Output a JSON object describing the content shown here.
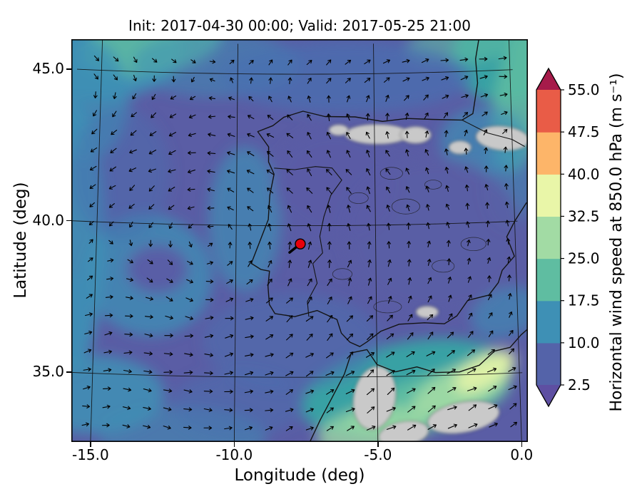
{
  "chart_data": {
    "type": "heatmap",
    "title": "Init: 2017-04-30 00:00; Valid: 2017-05-25 21:00",
    "xlabel": "Longitude (deg)",
    "ylabel": "Latitude (deg)",
    "xlim": [
      -15.9,
      0.45
    ],
    "ylim": [
      32.7,
      45.99
    ],
    "xticks": [
      -15.0,
      -10.0,
      -5.0,
      0.0
    ],
    "xtick_labels": [
      "-15.0",
      "-10.0",
      "-5.0",
      "0.0"
    ],
    "yticks": [
      35.0,
      40.0,
      45.0
    ],
    "ytick_labels": [
      "35.0",
      "40.0",
      "45.0"
    ],
    "grid": true,
    "colorbar": {
      "label": "Horizontal wind speed at 850.0 hPa (m s⁻¹)",
      "ticks": [
        2.5,
        10.0,
        17.5,
        25.0,
        32.5,
        40.0,
        47.5,
        55.0
      ],
      "tick_labels_top_to_bottom": [
        "55.0",
        "47.5",
        "40.0",
        "32.5",
        "25.0",
        "17.5",
        "10.0",
        "2.5"
      ],
      "band_colors_low_to_high": [
        "#5463a9",
        "#3e90b5",
        "#5fbda1",
        "#a2dba4",
        "#e9f6a8",
        "#fdb569",
        "#e95c47"
      ],
      "under_color": "#5e4fa2",
      "over_color": "#a61b4a"
    },
    "marker": {
      "lon": -7.7,
      "lat": 39.4,
      "face": "#e8000b",
      "edge": "#000000"
    },
    "base_color": "#5a5da5",
    "terrain_mask_color": "#c9c9c9",
    "quiver": {
      "color": "#000000",
      "cols": 22,
      "rows": 21
    },
    "field_blobs": [
      [
        -15.3,
        45.6,
        3.2,
        1.6,
        0,
        "#3e90b5",
        0.95
      ],
      [
        -13.2,
        45.9,
        2.6,
        1.0,
        -10,
        "#5fbda1",
        0.8
      ],
      [
        -15.6,
        44.0,
        1.6,
        2.0,
        0,
        "#3e90b5",
        0.8
      ],
      [
        -10.8,
        45.3,
        3.0,
        1.1,
        0,
        "#3e90b5",
        0.5
      ],
      [
        -15.9,
        39.5,
        1.2,
        4.5,
        0,
        "#3e90b5",
        0.85
      ],
      [
        -13.1,
        38.3,
        2.3,
        2.0,
        20,
        "#3e90b5",
        0.75
      ],
      [
        -12.8,
        38.5,
        1.1,
        0.8,
        0,
        "#5a5da5",
        0.95
      ],
      [
        -9.7,
        40.2,
        1.3,
        2.4,
        0,
        "#3e90b5",
        0.65
      ],
      [
        -15.0,
        34.3,
        2.6,
        1.3,
        0,
        "#3e90b5",
        0.85
      ],
      [
        -11.8,
        33.0,
        3.0,
        1.0,
        0,
        "#3e90b5",
        0.55
      ],
      [
        -4.0,
        34.6,
        3.8,
        1.5,
        -12,
        "#35a8a4",
        0.9
      ],
      [
        -3.2,
        34.1,
        3.0,
        0.9,
        -15,
        "#5fbda1",
        0.95
      ],
      [
        -2.0,
        34.6,
        2.0,
        0.7,
        -25,
        "#a2dba4",
        0.9
      ],
      [
        -1.2,
        35.1,
        1.2,
        0.5,
        -30,
        "#e9f6a8",
        0.85
      ],
      [
        -5.2,
        33.2,
        2.0,
        0.8,
        -10,
        "#a2dba4",
        0.75
      ],
      [
        -0.1,
        45.4,
        2.0,
        1.5,
        0,
        "#35a8a4",
        0.9
      ],
      [
        0.4,
        44.0,
        1.0,
        2.4,
        10,
        "#5fbda1",
        0.85
      ],
      [
        -1.6,
        45.95,
        2.2,
        0.7,
        -8,
        "#5fbda1",
        0.6
      ],
      [
        -1.0,
        42.7,
        1.6,
        1.1,
        0,
        "#3e90b5",
        0.65
      ],
      [
        -0.2,
        41.2,
        0.9,
        1.5,
        0,
        "#3e90b5",
        0.5
      ],
      [
        -6.0,
        44.9,
        4.5,
        1.2,
        0,
        "#4a6fb0",
        0.75
      ],
      [
        -8.0,
        36.2,
        3.2,
        1.6,
        0,
        "#4a6fb0",
        0.5
      ],
      [
        -2.9,
        39.6,
        3.2,
        2.6,
        0,
        "#5a5da5",
        0.85
      ],
      [
        -6.5,
        41.4,
        2.2,
        1.8,
        0,
        "#5a5da5",
        0.7
      ],
      [
        -0.4,
        37.0,
        1.3,
        0.8,
        -20,
        "#3e90b5",
        0.6
      ],
      [
        -16.0,
        36.8,
        0.9,
        1.5,
        0,
        "#3e90b5",
        0.5
      ],
      [
        -14.2,
        41.6,
        1.8,
        2.2,
        0,
        "#4a6fb0",
        0.45
      ],
      [
        -9.9,
        34.1,
        2.4,
        1.1,
        0,
        "#4a6fb0",
        0.5
      ]
    ],
    "terrain_patches": [
      [
        -4.9,
        43.0,
        1.15,
        0.33,
        0
      ],
      [
        -3.5,
        42.95,
        0.55,
        0.28,
        0
      ],
      [
        -6.3,
        43.15,
        0.35,
        0.18,
        0
      ],
      [
        -0.35,
        42.75,
        0.95,
        0.4,
        5
      ],
      [
        -1.9,
        42.5,
        0.4,
        0.22,
        0
      ],
      [
        -5.1,
        34.3,
        0.75,
        1.05,
        10
      ],
      [
        -3.2,
        37.1,
        0.4,
        0.2,
        0
      ],
      [
        -2.0,
        33.6,
        1.3,
        0.5,
        -10
      ],
      [
        -4.1,
        33.1,
        0.9,
        0.4,
        -10
      ]
    ],
    "contour_squiggles": [
      [
        -3.9,
        40.6,
        0.5,
        0.25
      ],
      [
        -2.6,
        38.6,
        0.4,
        0.2
      ],
      [
        -5.6,
        40.9,
        0.35,
        0.18
      ],
      [
        -1.5,
        39.3,
        0.45,
        0.22
      ],
      [
        -4.4,
        41.7,
        0.4,
        0.2
      ],
      [
        -2.9,
        41.3,
        0.3,
        0.15
      ],
      [
        -6.2,
        38.4,
        0.35,
        0.18
      ],
      [
        -4.6,
        37.3,
        0.5,
        0.2
      ]
    ],
    "coastlines": [
      [
        [
          -1.1,
          46.1
        ],
        [
          -1.25,
          45.4
        ],
        [
          -1.2,
          44.6
        ],
        [
          -1.4,
          43.6
        ],
        [
          -1.8,
          43.4
        ],
        [
          -2.9,
          43.45
        ],
        [
          -3.8,
          43.5
        ],
        [
          -4.7,
          43.42
        ],
        [
          -5.7,
          43.58
        ],
        [
          -6.8,
          43.6
        ],
        [
          -7.6,
          43.78
        ],
        [
          -8.3,
          43.58
        ],
        [
          -8.7,
          43.3
        ],
        [
          -9.25,
          43.1
        ],
        [
          -8.85,
          42.6
        ],
        [
          -8.85,
          42.1
        ],
        [
          -8.65,
          41.7
        ],
        [
          -8.8,
          41.0
        ],
        [
          -8.85,
          40.2
        ],
        [
          -9.45,
          38.75
        ],
        [
          -9.1,
          38.55
        ],
        [
          -8.8,
          38.5
        ],
        [
          -8.85,
          38.0
        ],
        [
          -8.8,
          37.4
        ],
        [
          -8.6,
          37.1
        ],
        [
          -7.9,
          37.0
        ],
        [
          -7.1,
          37.2
        ],
        [
          -6.4,
          36.9
        ],
        [
          -6.25,
          36.45
        ],
        [
          -5.95,
          36.15
        ],
        [
          -5.6,
          36.0
        ],
        [
          -5.35,
          36.15
        ],
        [
          -4.85,
          36.5
        ],
        [
          -4.2,
          36.72
        ],
        [
          -3.3,
          36.75
        ],
        [
          -2.6,
          36.7
        ],
        [
          -2.15,
          36.95
        ],
        [
          -1.75,
          37.45
        ],
        [
          -1.0,
          37.6
        ],
        [
          -0.65,
          38.0
        ],
        [
          -0.5,
          38.4
        ],
        [
          -0.05,
          38.85
        ],
        [
          -0.3,
          39.5
        ],
        [
          0.0,
          40.0
        ],
        [
          0.45,
          40.6
        ]
      ],
      [
        [
          -7.4,
          32.8
        ],
        [
          -7.0,
          33.6
        ],
        [
          -6.6,
          34.3
        ],
        [
          -6.15,
          35.1
        ],
        [
          -5.9,
          35.8
        ],
        [
          -5.35,
          35.9
        ],
        [
          -5.0,
          35.4
        ],
        [
          -4.35,
          35.15
        ],
        [
          -3.6,
          35.3
        ],
        [
          -2.95,
          35.1
        ],
        [
          -2.1,
          35.1
        ],
        [
          -1.4,
          35.3
        ],
        [
          -0.85,
          35.75
        ],
        [
          -0.3,
          35.85
        ],
        [
          0.1,
          36.25
        ],
        [
          0.5,
          36.55
        ]
      ]
    ],
    "borders": [
      [
        [
          -1.8,
          43.4
        ],
        [
          -0.9,
          42.95
        ],
        [
          0.0,
          42.7
        ],
        [
          0.45,
          42.45
        ]
      ],
      [
        [
          -8.65,
          41.9
        ],
        [
          -7.9,
          41.85
        ],
        [
          -7.15,
          41.95
        ],
        [
          -6.55,
          41.9
        ],
        [
          -6.2,
          41.5
        ],
        [
          -6.6,
          41.0
        ],
        [
          -6.85,
          40.3
        ],
        [
          -7.0,
          39.65
        ],
        [
          -6.9,
          39.1
        ],
        [
          -7.25,
          38.75
        ],
        [
          -7.1,
          38.1
        ],
        [
          -7.45,
          37.5
        ],
        [
          -7.4,
          37.0
        ]
      ]
    ]
  }
}
